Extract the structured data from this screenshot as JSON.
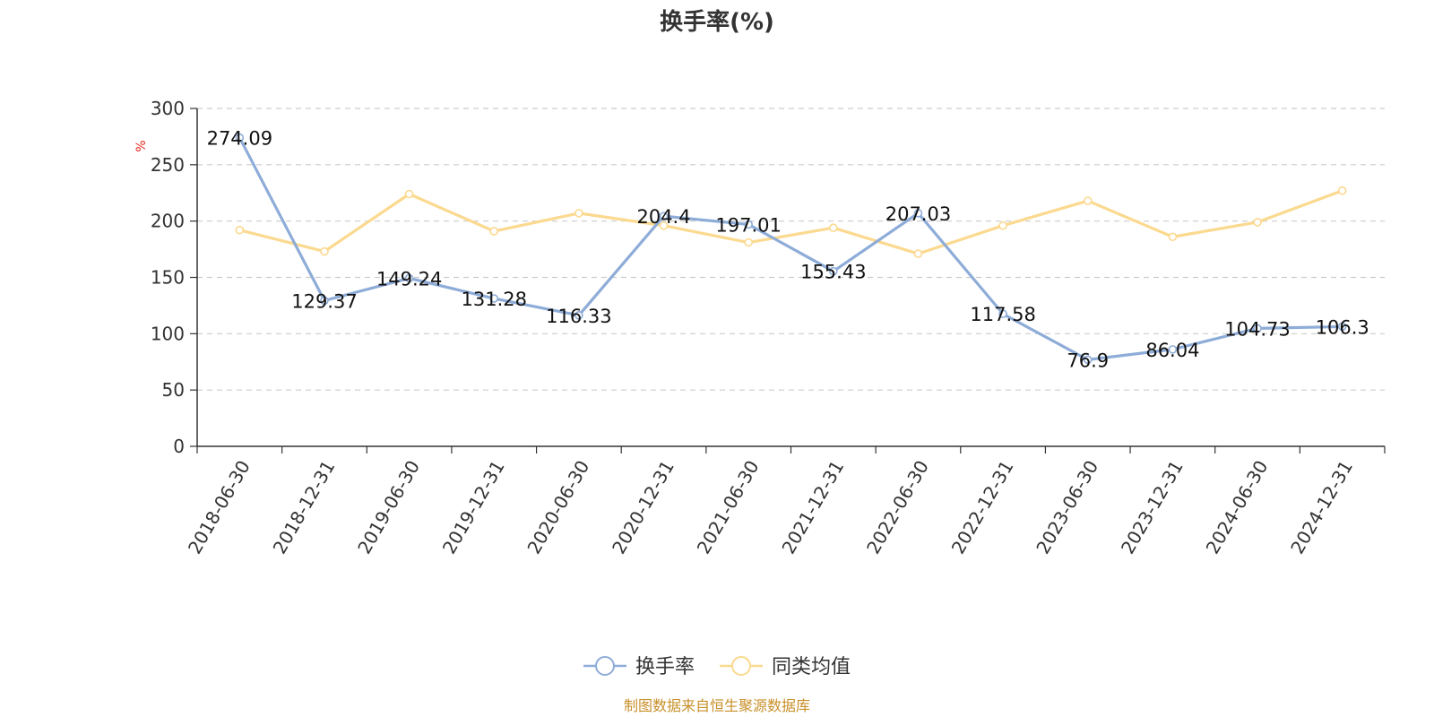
{
  "chart_data": {
    "type": "line",
    "title": "换手率(%)",
    "ylabel": "%",
    "xlabel": "",
    "ylim": [
      0,
      300
    ],
    "yticks": [
      0,
      50,
      100,
      150,
      200,
      250,
      300
    ],
    "grid": true,
    "legend_position": "bottom-center",
    "categories": [
      "2018-06-30",
      "2018-12-31",
      "2019-06-30",
      "2019-12-31",
      "2020-06-30",
      "2020-12-31",
      "2021-06-30",
      "2021-12-31",
      "2022-06-30",
      "2022-12-31",
      "2023-06-30",
      "2023-12-31",
      "2024-06-30",
      "2024-12-31"
    ],
    "series": [
      {
        "name": "换手率",
        "color": "#8eacd8",
        "show_labels": true,
        "values": [
          274.09,
          129.37,
          149.24,
          131.28,
          116.33,
          204.4,
          197.01,
          155.43,
          207.03,
          117.58,
          76.9,
          86.04,
          104.73,
          106.3
        ]
      },
      {
        "name": "同类均值",
        "color": "#fbd98f",
        "show_labels": false,
        "values": [
          192,
          173,
          224,
          191,
          207,
          196,
          181,
          194,
          171,
          196,
          218,
          186,
          199,
          227
        ]
      }
    ],
    "source": "制图数据来自恒生聚源数据库"
  }
}
